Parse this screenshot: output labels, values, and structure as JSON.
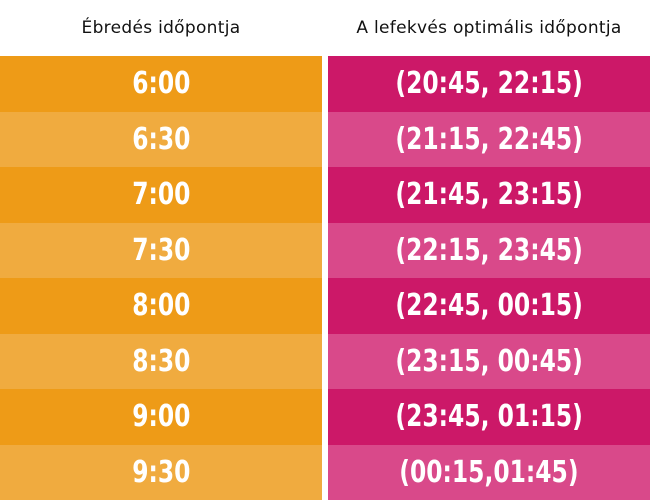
{
  "header": {
    "wake_label": "Ébredés időpontja",
    "sleep_label": "A lefekvés optimális időpontja"
  },
  "colors": {
    "orange_dark": "#ee9b17",
    "orange_light": "#f0ab3f",
    "pink_dark": "#cc1868",
    "pink_light": "#d9498a"
  },
  "rows": [
    {
      "wake": "6:00",
      "sleep": "(20:45, 22:15)"
    },
    {
      "wake": "6:30",
      "sleep": "(21:15, 22:45)"
    },
    {
      "wake": "7:00",
      "sleep": "(21:45, 23:15)"
    },
    {
      "wake": "7:30",
      "sleep": "(22:15, 23:45)"
    },
    {
      "wake": "8:00",
      "sleep": "(22:45, 00:15)"
    },
    {
      "wake": "8:30",
      "sleep": "(23:15, 00:45)"
    },
    {
      "wake": "9:00",
      "sleep": "(23:45, 01:15)"
    },
    {
      "wake": "9:30",
      "sleep": "(00:15,01:45)"
    }
  ]
}
